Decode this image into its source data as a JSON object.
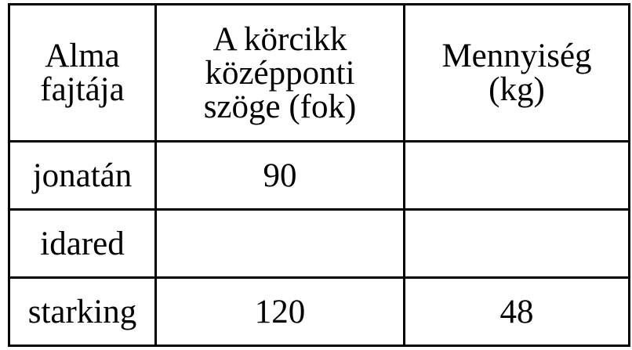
{
  "table": {
    "headers": [
      "Alma fajtája",
      "A körcikk középponti szöge (fok)",
      "Mennyiség (kg)"
    ],
    "header_lines": [
      [
        "Alma",
        "fajtája"
      ],
      [
        "A körcikk",
        "középponti",
        "szöge (fok)"
      ],
      [
        "Mennyiség",
        "(kg)"
      ]
    ],
    "rows": [
      [
        "jonatán",
        "90",
        ""
      ],
      [
        "idared",
        "",
        ""
      ],
      [
        "starking",
        "120",
        "48"
      ]
    ]
  }
}
